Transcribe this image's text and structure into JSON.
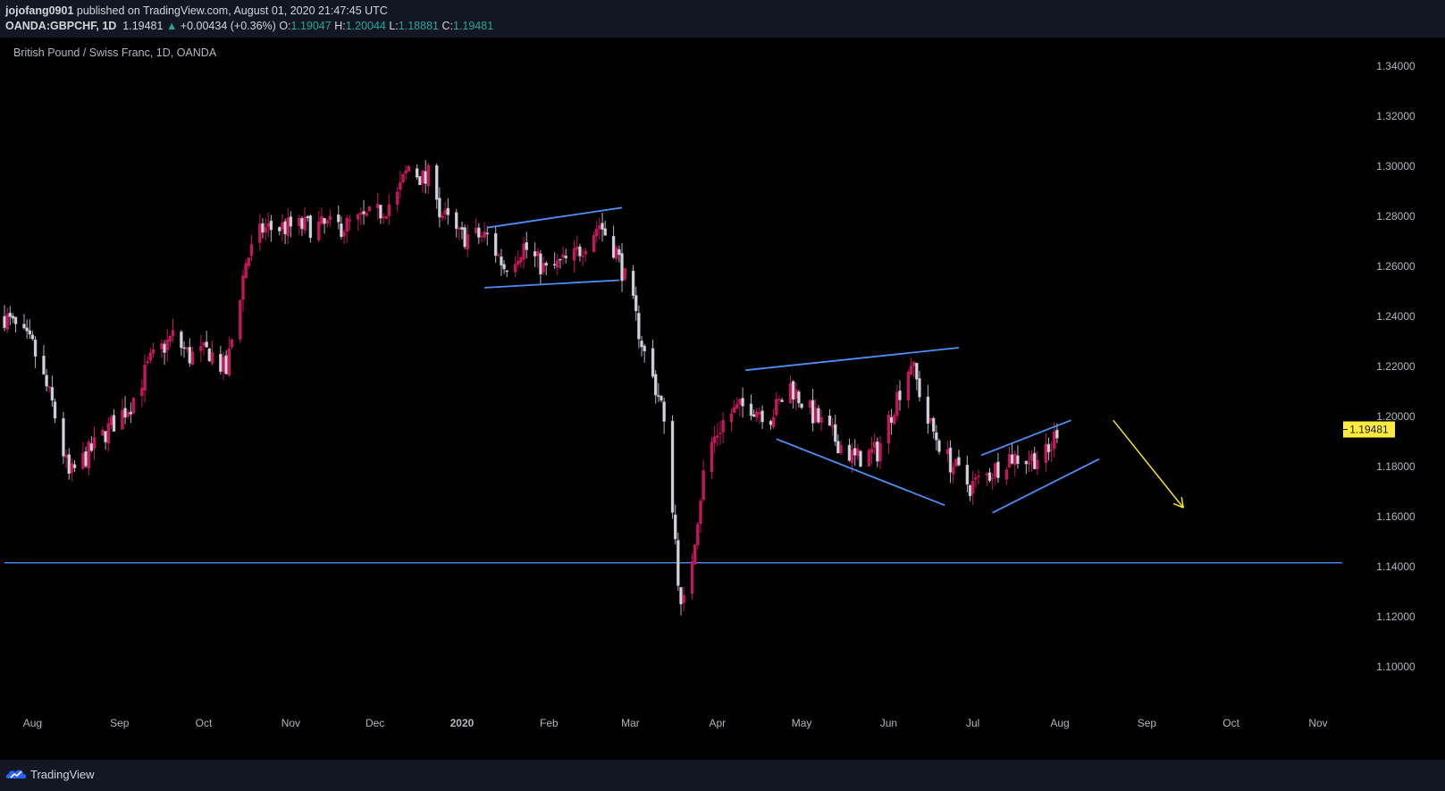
{
  "header": {
    "publisher": "jojofang0901",
    "published_text": " published on TradingView.com, August 01, 2020 21:47:45 UTC",
    "symbol": "OANDA:GBPCHF, 1D",
    "last": "1.19481",
    "change": "+0.00434 (+0.36%)",
    "o_label": "O:",
    "o_value": "1.19047",
    "h_label": "H:",
    "h_value": "1.20044",
    "l_label": "L:",
    "l_value": "1.18881",
    "c_label": "C:",
    "c_value": "1.19481"
  },
  "footer": {
    "brand": "TradingView"
  },
  "colors": {
    "up": "#c2185b",
    "down": "#b2b5be",
    "trendline": "#4d8ef7",
    "arrow": "#f5e12b",
    "price_tag": "#ffeb3b"
  },
  "chart_data": {
    "type": "candlestick",
    "title": "British Pound / Swiss Franc, 1D, OANDA",
    "y_axis": {
      "min": 1.086,
      "max": 1.344,
      "ticks": [
        "1.34000",
        "1.32000",
        "1.30000",
        "1.28000",
        "1.26000",
        "1.24000",
        "1.22000",
        "1.20000",
        "1.18000",
        "1.16000",
        "1.14000",
        "1.12000",
        "1.10000"
      ]
    },
    "x_axis": {
      "labels": [
        "Aug",
        "Sep",
        "Oct",
        "Nov",
        "Dec",
        "2020",
        "Feb",
        "Mar",
        "Apr",
        "May",
        "Jun",
        "Jul",
        "Aug",
        "Sep",
        "Oct",
        "Nov"
      ],
      "start": "2019-07-22",
      "end": "2020-11-08"
    },
    "current_price": "1.19481",
    "price_path": [
      [
        "2019-07-22",
        1.24
      ],
      [
        "2019-08-01",
        1.228
      ],
      [
        "2019-08-08",
        1.205
      ],
      [
        "2019-08-14",
        1.176
      ],
      [
        "2019-08-20",
        1.184
      ],
      [
        "2019-08-28",
        1.195
      ],
      [
        "2019-09-05",
        1.205
      ],
      [
        "2019-09-12",
        1.222
      ],
      [
        "2019-09-20",
        1.232
      ],
      [
        "2019-09-26",
        1.224
      ],
      [
        "2019-10-03",
        1.226
      ],
      [
        "2019-10-09",
        1.218
      ],
      [
        "2019-10-16",
        1.262
      ],
      [
        "2019-10-22",
        1.275
      ],
      [
        "2019-11-05",
        1.276
      ],
      [
        "2019-11-20",
        1.276
      ],
      [
        "2019-12-02",
        1.281
      ],
      [
        "2019-12-09",
        1.288
      ],
      [
        "2019-12-13",
        1.3
      ],
      [
        "2019-12-19",
        1.294
      ],
      [
        "2019-12-22",
        1.3
      ],
      [
        "2019-12-24",
        1.282
      ],
      [
        "2019-12-31",
        1.272
      ],
      [
        "2020-01-10",
        1.272
      ],
      [
        "2020-01-16",
        1.26
      ],
      [
        "2020-01-23",
        1.268
      ],
      [
        "2020-01-31",
        1.258
      ],
      [
        "2020-02-10",
        1.264
      ],
      [
        "2020-02-19",
        1.277
      ],
      [
        "2020-02-25",
        1.266
      ],
      [
        "2020-03-02",
        1.244
      ],
      [
        "2020-03-06",
        1.225
      ],
      [
        "2020-03-12",
        1.205
      ],
      [
        "2020-03-16",
        1.165
      ],
      [
        "2020-03-19",
        1.122
      ],
      [
        "2020-03-21",
        1.128
      ],
      [
        "2020-03-24",
        1.152
      ],
      [
        "2020-03-28",
        1.185
      ],
      [
        "2020-04-04",
        1.2
      ],
      [
        "2020-04-12",
        1.205
      ],
      [
        "2020-04-20",
        1.2
      ],
      [
        "2020-04-27",
        1.212
      ],
      [
        "2020-05-04",
        1.202
      ],
      [
        "2020-05-12",
        1.192
      ],
      [
        "2020-05-20",
        1.183
      ],
      [
        "2020-05-28",
        1.186
      ],
      [
        "2020-06-04",
        1.208
      ],
      [
        "2020-06-09",
        1.222
      ],
      [
        "2020-06-15",
        1.198
      ],
      [
        "2020-06-22",
        1.183
      ],
      [
        "2020-06-30",
        1.172
      ],
      [
        "2020-07-07",
        1.177
      ],
      [
        "2020-07-14",
        1.184
      ],
      [
        "2020-07-21",
        1.183
      ],
      [
        "2020-07-28",
        1.185
      ],
      [
        "2020-07-31",
        1.195
      ]
    ],
    "horizontal_line": 1.1415,
    "trendlines": [
      [
        [
          "2020-01-10",
          1.2755
        ],
        [
          "2020-02-27",
          1.2835
        ]
      ],
      [
        [
          "2020-01-09",
          1.2515
        ],
        [
          "2020-02-26",
          1.2545
        ]
      ],
      [
        [
          "2020-04-11",
          1.2185
        ],
        [
          "2020-06-26",
          1.2275
        ]
      ],
      [
        [
          "2020-04-22",
          1.191
        ],
        [
          "2020-06-21",
          1.1645
        ]
      ],
      [
        [
          "2020-07-04",
          1.1845
        ],
        [
          "2020-08-05",
          1.1985
        ]
      ],
      [
        [
          "2020-07-08",
          1.1615
        ],
        [
          "2020-08-15",
          1.183
        ]
      ]
    ],
    "forecast_arrow": [
      [
        "2020-08-20",
        1.1985
      ],
      [
        "2020-09-14",
        1.1635
      ]
    ]
  }
}
